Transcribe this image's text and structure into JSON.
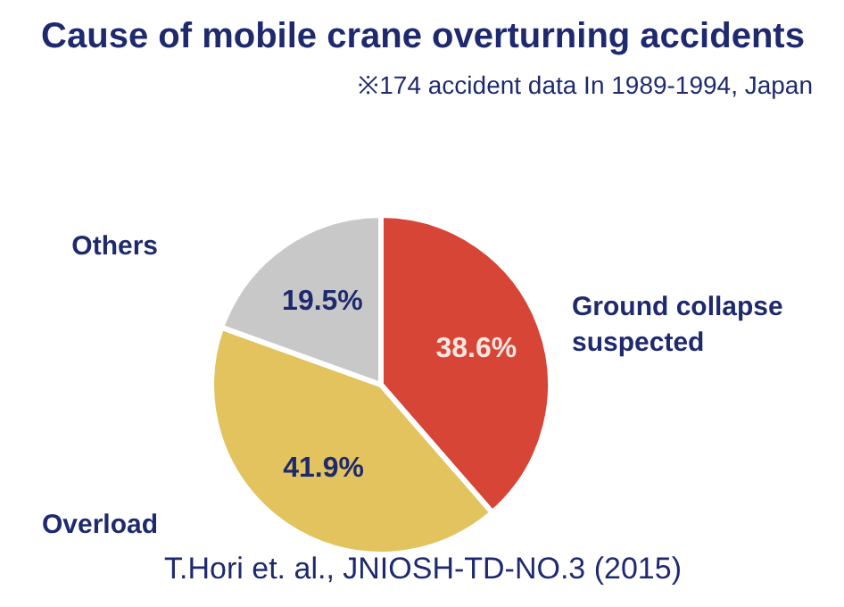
{
  "chart_data": {
    "type": "pie",
    "title": "Cause of mobile crane overturning accidents",
    "subtitle": "※174 accident data In 1989-1994, Japan",
    "categories": [
      "Ground collapse\nsuspected",
      "Overload",
      "Others"
    ],
    "values": [
      38.6,
      41.9,
      19.5
    ],
    "colors": [
      "#d64535",
      "#e2c35e",
      "#c8c8c8"
    ],
    "value_labels": [
      "38.6%",
      "41.9%",
      "19.5%"
    ],
    "annotations": [
      "T.Hori et. al., JNIOSH-TD-NO.3 (2015)"
    ]
  }
}
